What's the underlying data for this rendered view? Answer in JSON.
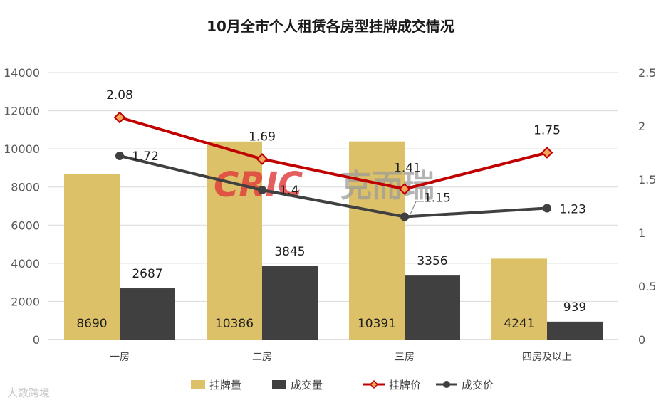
{
  "chart_data": {
    "type": "bar",
    "title": "10月全市个人租赁各房型挂牌成交情况",
    "categories": [
      "一房",
      "二房",
      "三房",
      "四房及以上"
    ],
    "series": [
      {
        "name": "挂牌量",
        "type": "bar",
        "axis": "left",
        "color": "#dcc168",
        "values": [
          8690,
          10386,
          10391,
          4241
        ]
      },
      {
        "name": "成交量",
        "type": "bar",
        "axis": "left",
        "color": "#404040",
        "values": [
          2687,
          3845,
          3356,
          939
        ]
      },
      {
        "name": "挂牌价",
        "type": "line",
        "axis": "right",
        "color": "#c00000",
        "marker": "diamond",
        "values": [
          2.08,
          1.69,
          1.41,
          1.75
        ]
      },
      {
        "name": "成交价",
        "type": "line",
        "axis": "right",
        "color": "#404040",
        "marker": "circle",
        "values": [
          1.72,
          1.4,
          1.15,
          1.23
        ]
      }
    ],
    "y_left": {
      "range": [
        0,
        14000
      ],
      "ticks": [
        "0",
        "2000",
        "4000",
        "6000",
        "8000",
        "10000",
        "12000",
        "14000"
      ]
    },
    "y_right": {
      "range": [
        0,
        2.5
      ],
      "ticks": [
        "0",
        "0.5",
        "1",
        "1.5",
        "2",
        "2.5"
      ]
    },
    "data_labels": {
      "挂牌量": [
        "8690",
        "10386",
        "10391",
        "4241"
      ],
      "成交量": [
        "2687",
        "3845",
        "3356",
        "939"
      ],
      "挂牌价": [
        "2.08",
        "1.69",
        "1.41",
        "1.75"
      ],
      "成交价": [
        "1.72",
        "1.4",
        "1.15",
        "1.23"
      ]
    },
    "grid": true,
    "legend": "bottom"
  },
  "watermark": {
    "text": "CRIC克而瑞"
  },
  "footer": {
    "text": "大数跨境"
  }
}
